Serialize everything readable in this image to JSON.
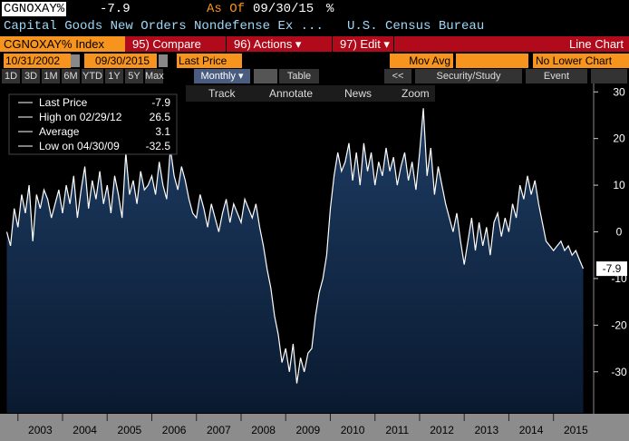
{
  "header": {
    "ticker": "CGNOXAY%",
    "last": -7.9,
    "as_of_label": "As Of",
    "as_of": "09/30/15",
    "unit": "%",
    "description": "Capital Goods New Orders Nondefense Ex ...",
    "source": "U.S. Census Bureau"
  },
  "toolbar": {
    "security": "CGNOXAY% Index",
    "buttons": [
      "95) Compare",
      "96) Actions ▾",
      "97) Edit ▾"
    ],
    "chart_type": "Line Chart"
  },
  "range": {
    "start": "10/31/2002",
    "end": "09/30/2015",
    "field": "Last Price",
    "mov_avg": "Mov Avg",
    "lower": "No Lower Chart"
  },
  "periods": [
    "1D",
    "3D",
    "1M",
    "6M",
    "YTD",
    "1Y",
    "5Y",
    "Max"
  ],
  "frequency": "Monthly ▾",
  "table": "Table",
  "back": "<<",
  "study": "Security/Study",
  "event": "Event",
  "chart_tools": [
    "Track",
    "Annotate",
    "News",
    "Zoom"
  ],
  "chart_data": {
    "type": "area",
    "color": "#ffffff",
    "fill": "#0e2a4a",
    "legend": [
      {
        "label": "Last Price",
        "value": -7.9
      },
      {
        "label": "High on 02/29/12",
        "value": 26.5
      },
      {
        "label": "Average",
        "value": 3.1
      },
      {
        "label": "Low on 04/30/09",
        "value": -32.5
      }
    ],
    "values": [
      0,
      -3,
      5,
      1,
      8,
      4,
      10,
      -2,
      8,
      5,
      9,
      7,
      3,
      6,
      9,
      4,
      10,
      6,
      12,
      3,
      9,
      14,
      5,
      11,
      7,
      13,
      6,
      10,
      4,
      12,
      8,
      3,
      17,
      8,
      11,
      6,
      13,
      9,
      10,
      12,
      8,
      15,
      10,
      7,
      18,
      12,
      9,
      14,
      11,
      7,
      4,
      3,
      8,
      5,
      1,
      6,
      3,
      0,
      4,
      7,
      2,
      6,
      4,
      2,
      7,
      5,
      3,
      6,
      1,
      -3,
      -8,
      -12,
      -18,
      -22,
      -28,
      -25,
      -30,
      -24,
      -32.5,
      -27,
      -30,
      -26,
      -25,
      -18,
      -13,
      -10,
      -5,
      5,
      12,
      17,
      13,
      15,
      19,
      11,
      17,
      10,
      19,
      13,
      17,
      10,
      15,
      12,
      18,
      13,
      16,
      10,
      14,
      17,
      11,
      15,
      9,
      17,
      26.5,
      12,
      18,
      8,
      14,
      10,
      6,
      3,
      0,
      4,
      -2,
      -7,
      -2,
      3,
      -4,
      2,
      -3,
      1,
      -5,
      2,
      4,
      -1,
      3,
      0,
      6,
      3,
      10,
      7,
      12,
      8,
      11,
      6,
      2,
      -2,
      -3,
      -4,
      -3,
      -2,
      -4,
      -3,
      -5,
      -4,
      -6,
      -7.9
    ],
    "xlim": [
      2002.7,
      2015.9
    ],
    "xticks": [
      2003,
      2004,
      2005,
      2006,
      2007,
      2008,
      2009,
      2010,
      2011,
      2012,
      2013,
      2014,
      2015
    ],
    "ylim": [
      -38.8,
      31.8
    ],
    "yticks": [
      30,
      20,
      10,
      0,
      -10,
      -20,
      -30
    ]
  }
}
